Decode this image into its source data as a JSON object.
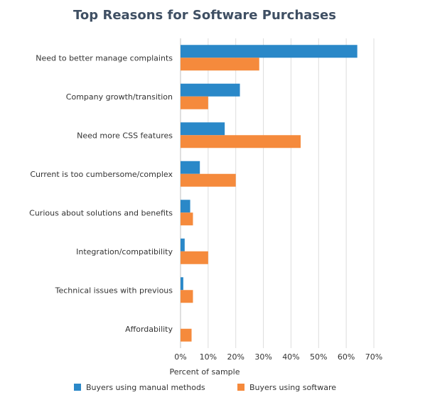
{
  "chart_data": {
    "type": "bar",
    "orientation": "horizontal",
    "title": "Top Reasons for Software Purchases",
    "xlabel": "Percent of sample",
    "ylabel": "",
    "categories": [
      "Need to better manage complaints",
      "Company growth/transition",
      "Need more CSS features",
      "Current is too cumbersome/complex",
      "Curious about solutions and benefits",
      "Integration/compatibility",
      "Technical issues with previous",
      "Affordability"
    ],
    "series": [
      {
        "name": "Buyers using manual methods",
        "color": "#2a88c8",
        "values": [
          64,
          21.5,
          16,
          7,
          3.5,
          1.5,
          1,
          0
        ]
      },
      {
        "name": "Buyers using software",
        "color": "#f58a3c",
        "values": [
          28.5,
          10,
          43.5,
          20,
          4.5,
          10,
          4.5,
          4
        ]
      }
    ],
    "xlim": [
      0,
      70
    ],
    "xticks": [
      "0%",
      "10%",
      "20%",
      "30%",
      "40%",
      "50%",
      "60%",
      "70%"
    ],
    "grid": true,
    "legend_position": "bottom"
  }
}
